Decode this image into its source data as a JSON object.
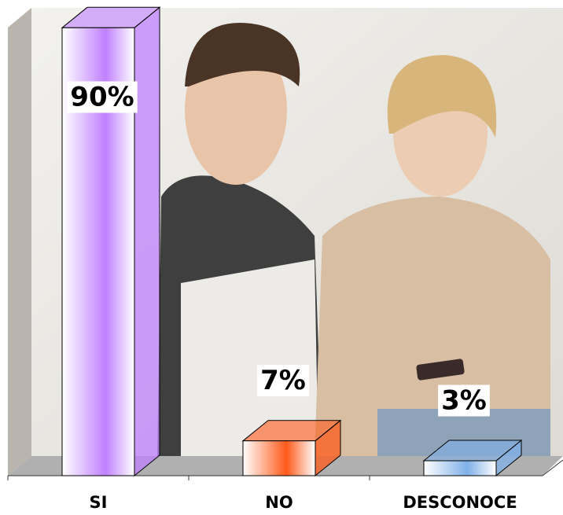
{
  "chart_data": {
    "type": "bar3d",
    "categories": [
      "SI",
      "NO",
      "DESCONOCE"
    ],
    "values": [
      90,
      7,
      3
    ],
    "value_labels": [
      "90%",
      "7%",
      "3%"
    ],
    "colors": [
      "#c080ff",
      "#ff5a1a",
      "#7fb0e8"
    ],
    "ylim": [
      0,
      100
    ]
  }
}
